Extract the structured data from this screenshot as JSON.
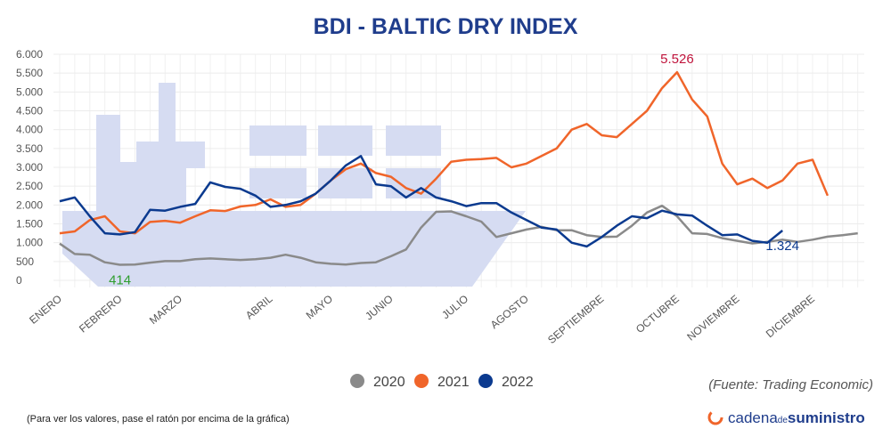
{
  "chart_data": {
    "type": "line",
    "title": "BDI - BALTIC DRY INDEX",
    "categories": [
      "ENERO",
      null,
      null,
      null,
      "FEBRERO",
      null,
      null,
      null,
      "MARZO",
      null,
      null,
      null,
      null,
      null,
      "ABRIL",
      null,
      null,
      null,
      "MAYO",
      null,
      null,
      null,
      "JUNIO",
      null,
      null,
      null,
      null,
      "JULIO",
      null,
      null,
      null,
      "AGOSTO",
      null,
      null,
      null,
      null,
      "SEPTIEMBRE",
      null,
      null,
      null,
      null,
      "OCTUBRE",
      null,
      null,
      null,
      "NOVIEMBRE",
      null,
      null,
      null,
      null,
      "DICIEMBRE",
      null,
      null,
      null
    ],
    "series": [
      {
        "name": "2020",
        "color": "#8a8a8a",
        "values": [
          976,
          700,
          680,
          480,
          414,
          420,
          470,
          510,
          510,
          560,
          580,
          560,
          540,
          560,
          600,
          680,
          600,
          480,
          440,
          420,
          460,
          480,
          640,
          820,
          1400,
          1820,
          1830,
          1700,
          1560,
          1150,
          1250,
          1350,
          1420,
          1330,
          1330,
          1200,
          1150,
          1160,
          1450,
          1800,
          1980,
          1700,
          1250,
          1230,
          1120,
          1050,
          980,
          1020,
          1080,
          1020,
          1080,
          1160,
          1200,
          1250
        ],
        "value_labels": [
          null,
          null,
          null,
          null,
          "414",
          null,
          null,
          null,
          null,
          null,
          null,
          null,
          null,
          null,
          null,
          null,
          null,
          null,
          null,
          null,
          null,
          null,
          null,
          null,
          null,
          null,
          null,
          null,
          null,
          null,
          null,
          null,
          null,
          null,
          null,
          null,
          null,
          null,
          null,
          null,
          null,
          null,
          null,
          null,
          null,
          null,
          null,
          null,
          null,
          null,
          null,
          null,
          null,
          null
        ]
      },
      {
        "name": "2021",
        "color": "#f0652a",
        "values": [
          1250,
          1300,
          1600,
          1700,
          1300,
          1250,
          1550,
          1580,
          1530,
          1700,
          1860,
          1840,
          1960,
          2000,
          2150,
          1950,
          2000,
          2300,
          2650,
          2950,
          3100,
          2850,
          2750,
          2450,
          2300,
          2700,
          3150,
          3200,
          3220,
          3250,
          3000,
          3100,
          3300,
          3500,
          4000,
          4150,
          3850,
          3800,
          4150,
          4500,
          5100,
          5526,
          4800,
          4350,
          3100,
          2550,
          2700,
          2450,
          2650,
          3100,
          3200,
          2250,
          null,
          null
        ],
        "value_labels": [
          null,
          null,
          null,
          null,
          null,
          null,
          null,
          null,
          null,
          null,
          null,
          null,
          null,
          null,
          null,
          null,
          null,
          null,
          null,
          null,
          null,
          null,
          null,
          null,
          null,
          null,
          null,
          null,
          null,
          null,
          null,
          null,
          null,
          null,
          null,
          null,
          null,
          null,
          null,
          null,
          null,
          "5.526",
          null,
          null,
          null,
          null,
          null,
          null,
          null,
          null,
          null,
          null,
          null,
          null
        ]
      },
      {
        "name": "2022",
        "color": "#0b3a8f",
        "values": [
          2100,
          2200,
          1700,
          1250,
          1220,
          1280,
          1870,
          1850,
          1950,
          2030,
          2600,
          2480,
          2430,
          2250,
          1950,
          2000,
          2100,
          2300,
          2650,
          3050,
          3300,
          2550,
          2500,
          2200,
          2450,
          2200,
          2100,
          1970,
          2050,
          2050,
          1800,
          1600,
          1400,
          1350,
          1000,
          900,
          1150,
          1450,
          1700,
          1650,
          1850,
          1750,
          1720,
          1450,
          1200,
          1220,
          1050,
          1000,
          1324,
          null,
          null,
          null,
          null,
          null
        ],
        "value_labels": [
          null,
          null,
          null,
          null,
          null,
          null,
          null,
          null,
          null,
          null,
          null,
          null,
          null,
          null,
          null,
          null,
          null,
          null,
          null,
          null,
          null,
          null,
          null,
          null,
          null,
          null,
          null,
          null,
          null,
          null,
          null,
          null,
          null,
          null,
          null,
          null,
          null,
          null,
          null,
          null,
          null,
          null,
          null,
          null,
          null,
          null,
          null,
          null,
          "1.324",
          null,
          null,
          null,
          null,
          null
        ]
      }
    ],
    "ylim": [
      0,
      6000
    ],
    "yticks": [
      0,
      500,
      {
        "value": 1000,
        "label": "1.000"
      },
      {
        "value": 1500,
        "label": "1.500"
      },
      {
        "value": 2000,
        "label": "2.000"
      },
      {
        "value": 2500,
        "label": "2.500"
      },
      {
        "value": 3000,
        "label": "3.000"
      },
      {
        "value": 3500,
        "label": "3.500"
      },
      {
        "value": 4000,
        "label": "4.000"
      },
      {
        "value": 4500,
        "label": "4.500"
      },
      {
        "value": 5000,
        "label": "5.000"
      },
      {
        "value": 5500,
        "label": "5.500"
      },
      {
        "value": 6000,
        "label": "6.000"
      }
    ],
    "grid": true,
    "legend": "bottom",
    "source": "(Fuente: Trading Economic)",
    "note": "(Para ver los valores, pase el ratón por encima de la gráfica)",
    "brand": [
      "cadena",
      "de",
      "suministro"
    ]
  }
}
